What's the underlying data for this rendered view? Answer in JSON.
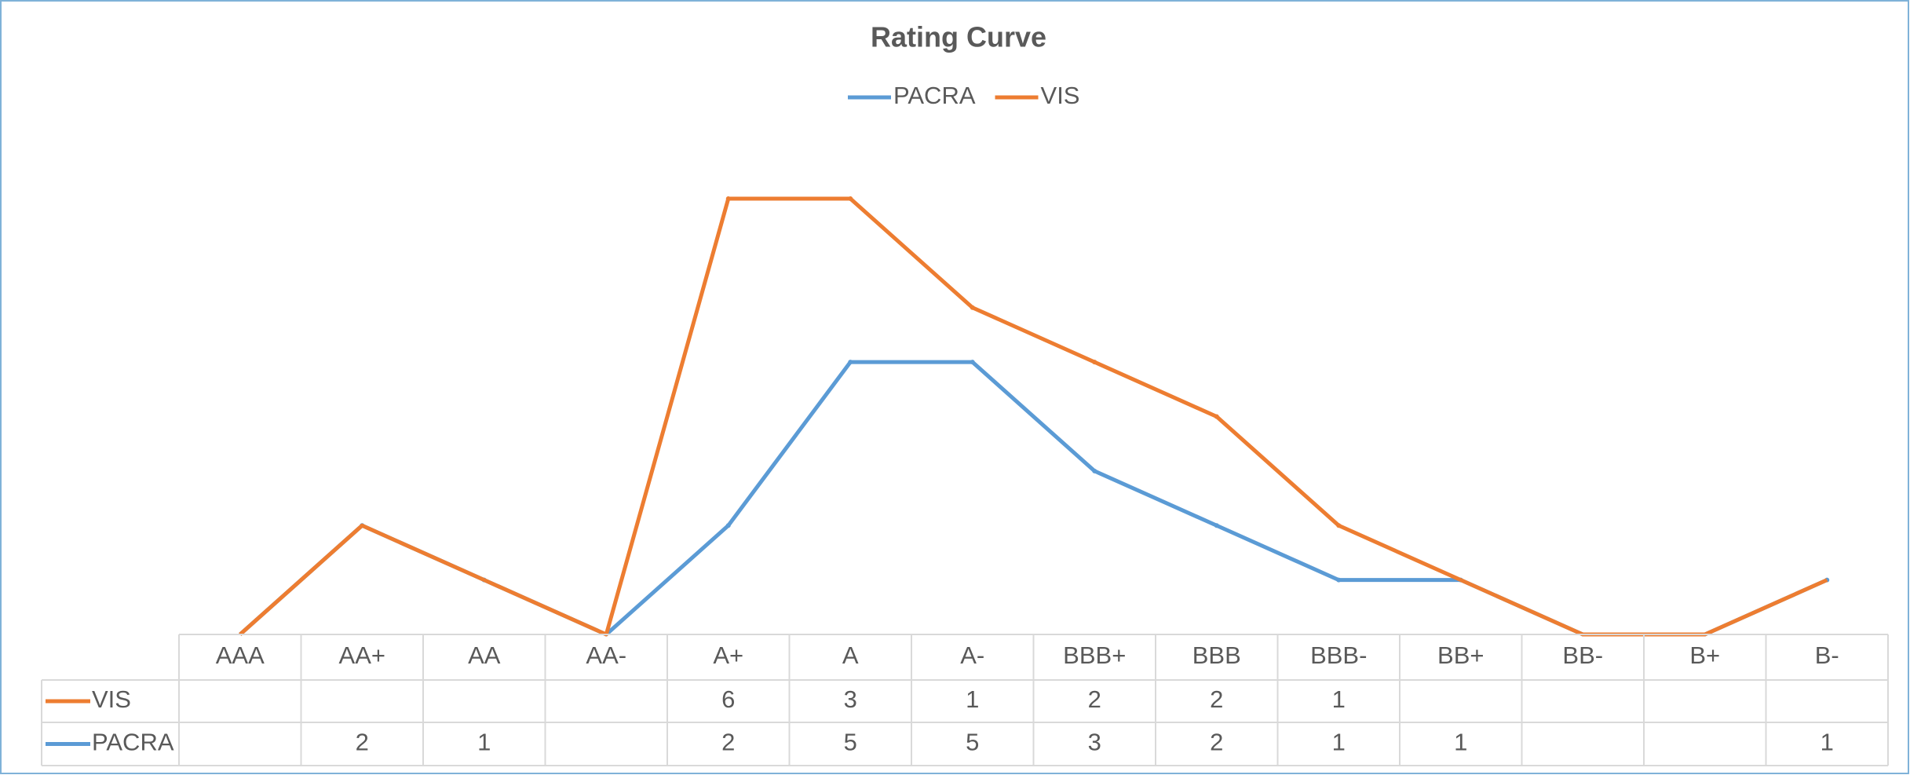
{
  "chart_data": {
    "type": "line",
    "stacked": true,
    "title": "Rating Curve",
    "categories": [
      "AAA",
      "AA+",
      "AA",
      "AA-",
      "A+",
      "A",
      "A-",
      "BBB+",
      "BBB",
      "BBB-",
      "BB+",
      "BB-",
      "B+",
      "B-"
    ],
    "series": [
      {
        "name": "PACRA",
        "color": "#5b9bd5",
        "values": [
          null,
          2,
          1,
          null,
          2,
          5,
          5,
          3,
          2,
          1,
          1,
          null,
          null,
          1
        ]
      },
      {
        "name": "VIS",
        "color": "#ed7d31",
        "values": [
          null,
          null,
          null,
          null,
          6,
          3,
          1,
          2,
          2,
          1,
          null,
          null,
          null,
          null
        ]
      }
    ],
    "ylim": [
      0,
      8
    ],
    "legend": "top",
    "data_table": true
  }
}
